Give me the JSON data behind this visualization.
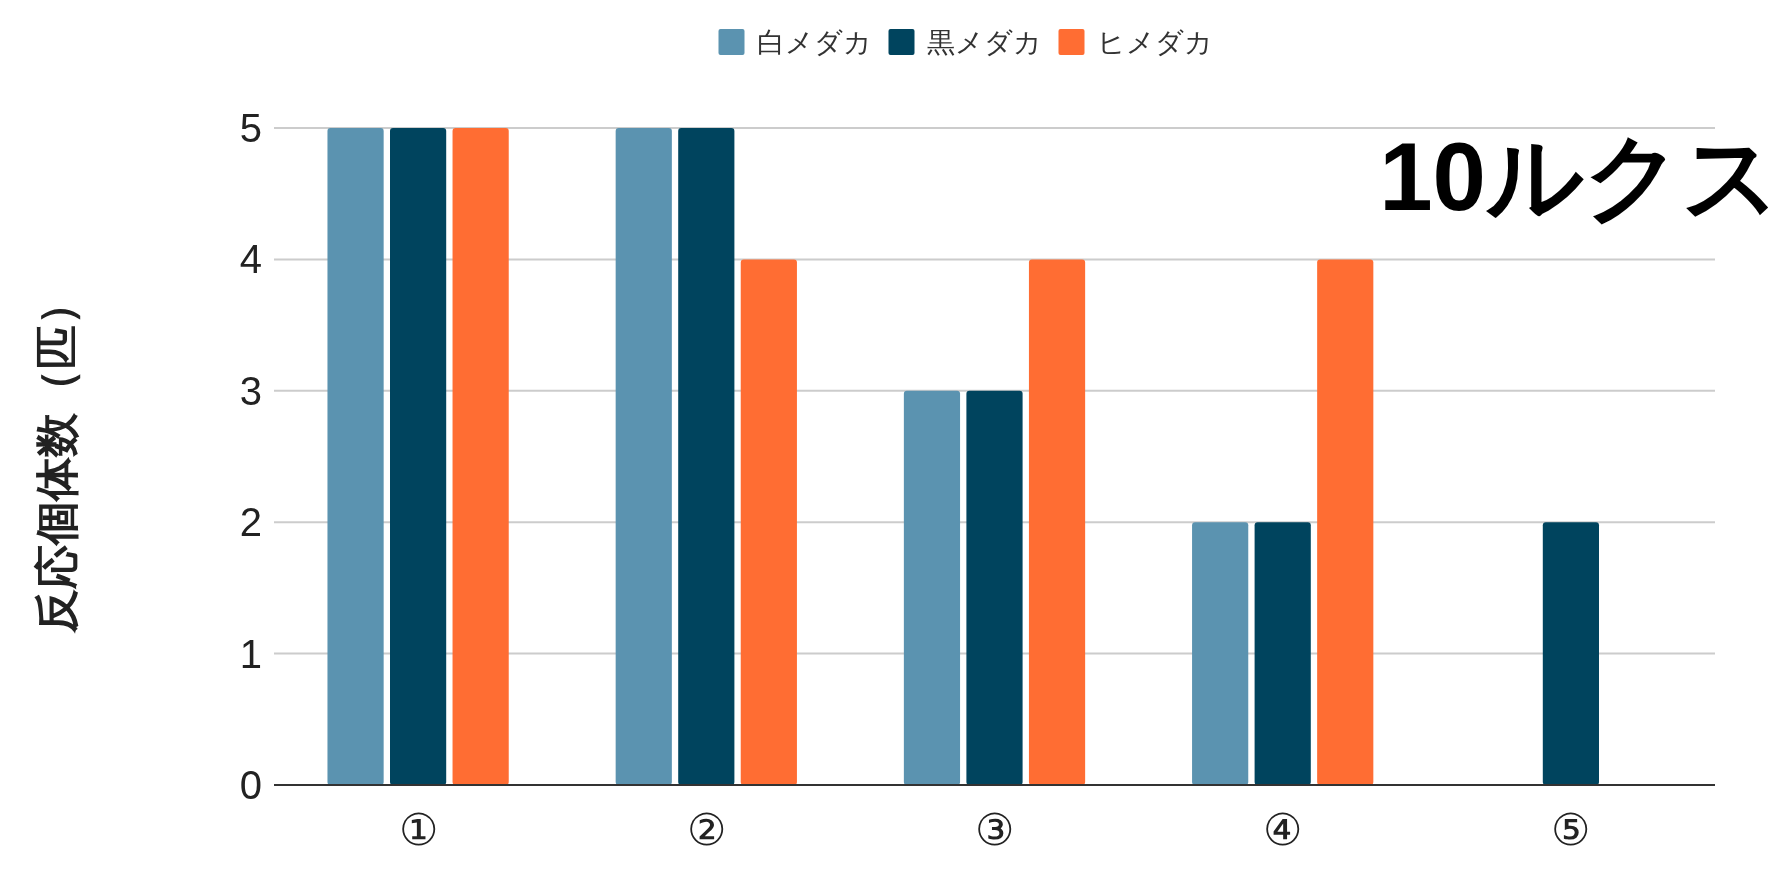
{
  "chart_data": {
    "type": "bar",
    "title": "10ルクス",
    "ylabel": "反応個体数（匹）",
    "categories": [
      "①",
      "②",
      "③",
      "④",
      "⑤"
    ],
    "series": [
      {
        "name": "白メダカ",
        "color": "#5b93b0",
        "values": [
          5,
          5,
          3,
          2,
          0
        ]
      },
      {
        "name": "黒メダカ",
        "color": "#00445e",
        "values": [
          5,
          5,
          3,
          2,
          2
        ]
      },
      {
        "name": "ヒメダカ",
        "color": "#ff6d33",
        "values": [
          5,
          4,
          4,
          4,
          0
        ]
      }
    ],
    "ylim": [
      0,
      5
    ],
    "yticks": [
      0,
      1,
      2,
      3,
      4,
      5
    ],
    "grid": "y",
    "legend": "top"
  }
}
